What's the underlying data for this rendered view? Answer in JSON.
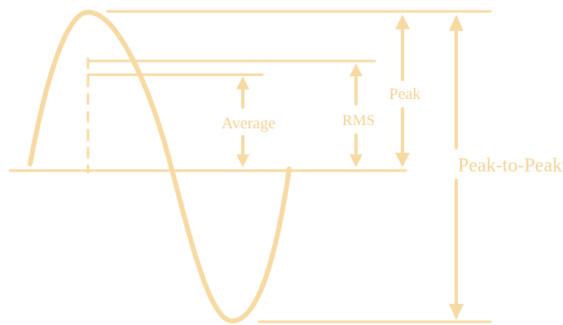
{
  "colors": {
    "stroke": "#f7d9a2",
    "text": "#f5d192",
    "background": "#ffffff"
  },
  "labels": {
    "average": "Average",
    "rms": "RMS",
    "peak": "Peak",
    "peak_to_peak": "Peak-to-Peak"
  }
}
